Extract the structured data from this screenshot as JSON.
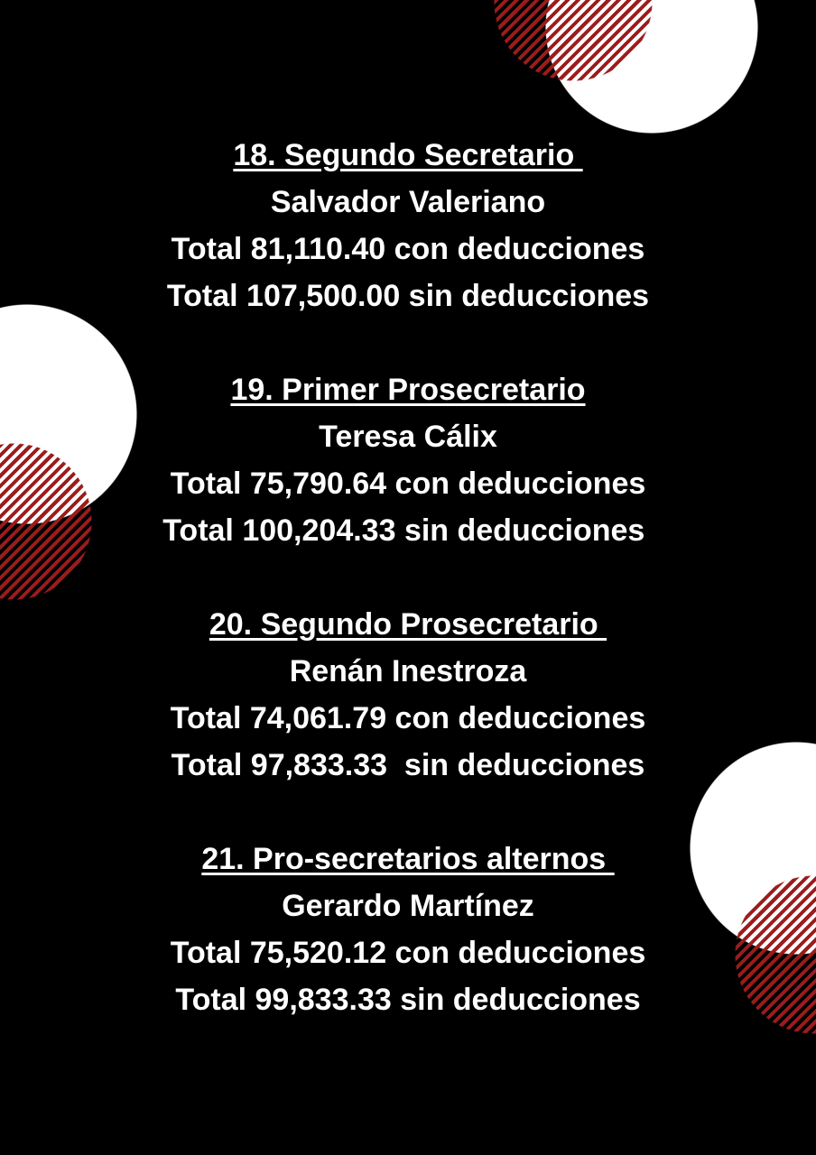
{
  "colors": {
    "background": "#000000",
    "circle": "#ffffff",
    "hatch": "#9b1c1c",
    "text": "#ffffff"
  },
  "entries": [
    {
      "title": "18. Segundo Secretario ",
      "name": "Salvador Valeriano",
      "with_deductions": "Total 81,110.40 con deducciones",
      "without_deductions": "Total 107,500.00 sin deducciones"
    },
    {
      "title": "19. Primer Prosecretario",
      "name": "Teresa Cálix",
      "with_deductions": "Total 75,790.64 con deducciones",
      "without_deductions": "Total 100,204.33 sin deducciones "
    },
    {
      "title": "20. Segundo Prosecretario ",
      "name": "Renán Inestroza",
      "with_deductions": "Total 74,061.79 con deducciones",
      "without_deductions": "Total 97,833.33  sin deducciones"
    },
    {
      "title": "21. Pro-secretarios alternos ",
      "name": "Gerardo Martínez",
      "with_deductions": "Total 75,520.12 con deducciones",
      "without_deductions": "Total 99,833.33 sin deducciones"
    }
  ]
}
